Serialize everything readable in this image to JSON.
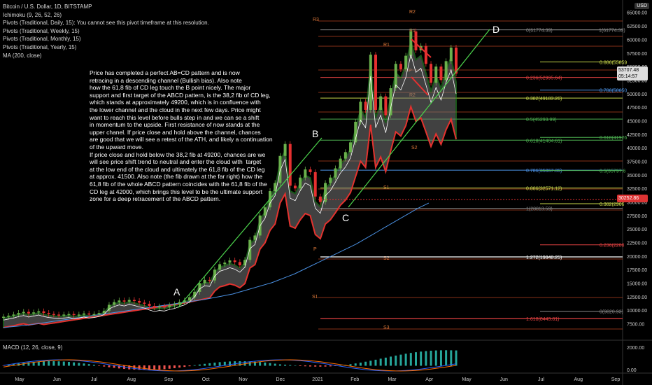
{
  "legend": {
    "title": "Bitcoin / U.S. Dollar, 1D, BITSTAMP",
    "lines": [
      "Ichimoku (9, 26, 52, 26)",
      "Pivots (Traditional, Daily, 15): You cannot see this pivot timeframe at this resolution.",
      "Pivots (Traditional, Weekly, 15)",
      "Pivots (Traditional, Monthly, 15)",
      "Pivots (Traditional, Yearly, 15)",
      "MA (200, close)"
    ],
    "macd": "MACD (12, 26, close, 9)"
  },
  "currency": "USD",
  "last_price": {
    "value": "53707.48",
    "countdown": "05:14:57"
  },
  "alert_price": "30252.86",
  "annotation": "Price has completed a perfect AB=CD pattern and is now\nretracing in a descending channel (Bullish bias). Also note\nhow the 61,8 fib of CD leg touch the B point nicely. The major\nsupport and first target of the ABCD pattern, is the 38,2 fib of CD leg,\nwhich stands at approximately 49200, which is in confluence with\nthe lower channel and the cloud in the next few days. Price might\nwant to reach this level before bulls step in and we can se a shift\nin momentum to the upside. First resistance of now stands at the\nupper chanel. If price close and hold above the channel, chances\nare good that we will see a retest of the ATH, and likely a continuation\nof the upward move.\nIf price close and hold below the 38,2 fib at 49200, chances are we\nwill see price shift trend to neutral and enter the cloud with  target\nat the low end of the cloud and ultimately the 61,8 fib of the CD leg\nat approx. 41500. Also note (the fib drawn at the far right) how the\n61,8 fib of the whole ABCD pattern coincides with the 61,8 fib of the\nCD leg at 42000, which brings this level to be the ultimate support\nzone for a deep retracement of the ABCD pattern.",
  "pattern_points": [
    "A",
    "B",
    "C",
    "D"
  ],
  "pivot_labels": [
    "R3",
    "R2",
    "R1",
    "P",
    "S1",
    "S2",
    "S3",
    "R2",
    "R1",
    "P",
    "S1",
    "S2"
  ],
  "fib_cd": [
    {
      "label": "0(61774.39)",
      "price": 61774.39
    },
    {
      "label": "0.236(52995.64)",
      "price": 52995.64
    },
    {
      "label": "0.382(49183.26)",
      "price": 49183.26
    },
    {
      "label": "0.5(45293.99)",
      "price": 45293.99
    },
    {
      "label": "0.618(41404.61)",
      "price": 41404.61
    },
    {
      "label": "0.786(35867.35)",
      "price": 35867.35
    },
    {
      "label": "0.886(32571.12)",
      "price": 32571.12
    },
    {
      "label": "1(28813.59)",
      "price": 28813.59
    }
  ],
  "fib_abcd": [
    {
      "label": "1(61774.39)",
      "price": 61774.39
    },
    {
      "label": "0.886(55859",
      "price": 55859
    },
    {
      "label": "0.786(50650",
      "price": 50650
    },
    {
      "label": "0.618(41926",
      "price": 41926
    },
    {
      "label": "0.5(35797.6",
      "price": 35797.6
    },
    {
      "label": "0.382(2966",
      "price": 29668
    },
    {
      "label": "0.236(2208",
      "price": 22080
    },
    {
      "label": "0(9820.93)",
      "price": 9820.93
    }
  ],
  "ext_labels": [
    {
      "label": "1.272(19848.25)",
      "price": 19848.25
    },
    {
      "label": "1.618(8443.81)",
      "price": 8443.81
    }
  ],
  "chart_data": {
    "type": "line",
    "title": "Bitcoin / U.S. Dollar, 1D, BITSTAMP",
    "x_ticks": [
      "May",
      "Jun",
      "Jul",
      "Aug",
      "Sep",
      "Oct",
      "Nov",
      "Dec",
      "2021",
      "Feb",
      "Mar",
      "Apr",
      "May",
      "Jun",
      "Jul",
      "Aug",
      "Sep"
    ],
    "y_ticks": [
      65000,
      62500,
      60000,
      57500,
      55000,
      52500,
      50000,
      47500,
      45000,
      42500,
      40000,
      37500,
      35000,
      32500,
      30000,
      27500,
      25000,
      22500,
      20000,
      17500,
      15000,
      12500,
      10000,
      7500
    ],
    "y_tick_labels": [
      "65000.00",
      "62500.00",
      "60000.00",
      "57500.00",
      "55000.00",
      "52500.00",
      "50000.00",
      "47500.00",
      "45000.00",
      "42500.00",
      "40000.00",
      "37500.00",
      "35000.00",
      "32500.00",
      "30000.00",
      "27500.00",
      "25000.00",
      "22500.00",
      "20000.00",
      "17500.00",
      "15000.00",
      "12500.00",
      "10000.00",
      "7500.00"
    ],
    "ylim": [
      5500,
      66000
    ],
    "macd_ticks": [
      "2000.00",
      "0.00"
    ],
    "series": [
      {
        "values": [
          8800,
          9000,
          9200,
          9500,
          9700,
          9400,
          9600,
          9800,
          9500,
          9300,
          9200,
          9100,
          9200,
          9300,
          9100,
          9200,
          9400,
          9200,
          9300,
          9500,
          9900,
          11000,
          11500,
          11800,
          11600,
          11900,
          11700,
          11400,
          11200,
          10800,
          10500,
          10700,
          10600,
          10900,
          11100,
          11500,
          11800,
          12400,
          13400,
          15000,
          15600,
          15500,
          17500,
          18500,
          18800,
          19200,
          18900,
          18300,
          19300,
          23000,
          23800,
          27500,
          29000,
          32000,
          33500,
          38500,
          40700,
          33000,
          32500,
          34500,
          36000,
          35500,
          31000,
          30000,
          33500,
          34500,
          36200,
          38000,
          39200,
          41000,
          44800,
          48500,
          47000,
          57200,
          47000,
          49500,
          46000,
          51000,
          55500,
          54500,
          57000,
          61500,
          58000,
          58800,
          55500,
          52000,
          55000,
          52500,
          56000,
          58500,
          53700
        ]
      },
      {
        "values": [
          6800,
          6900,
          7000,
          7100,
          7200,
          7350,
          7500,
          7650,
          7800,
          7950,
          8100,
          8250,
          8400,
          8550,
          8700,
          8850,
          9000,
          9150,
          9300,
          9450,
          9600,
          9750,
          9900,
          10050,
          10200,
          10350,
          10500,
          10650,
          10800,
          10950,
          11100,
          11250,
          11400,
          11550,
          11700,
          11850,
          12000,
          12200,
          12400,
          12600,
          12800,
          13000,
          13300,
          13600,
          13900,
          14200,
          14500,
          14800,
          15100,
          15500,
          15900,
          16300,
          16700,
          17200,
          17700,
          18200,
          18700,
          19200,
          19700,
          20200,
          20700,
          21200,
          21700,
          22200,
          22800,
          23400,
          24000,
          24600,
          25200,
          25800,
          26400,
          27000,
          27600,
          28200,
          28800,
          29300,
          29800
        ]
      }
    ]
  }
}
